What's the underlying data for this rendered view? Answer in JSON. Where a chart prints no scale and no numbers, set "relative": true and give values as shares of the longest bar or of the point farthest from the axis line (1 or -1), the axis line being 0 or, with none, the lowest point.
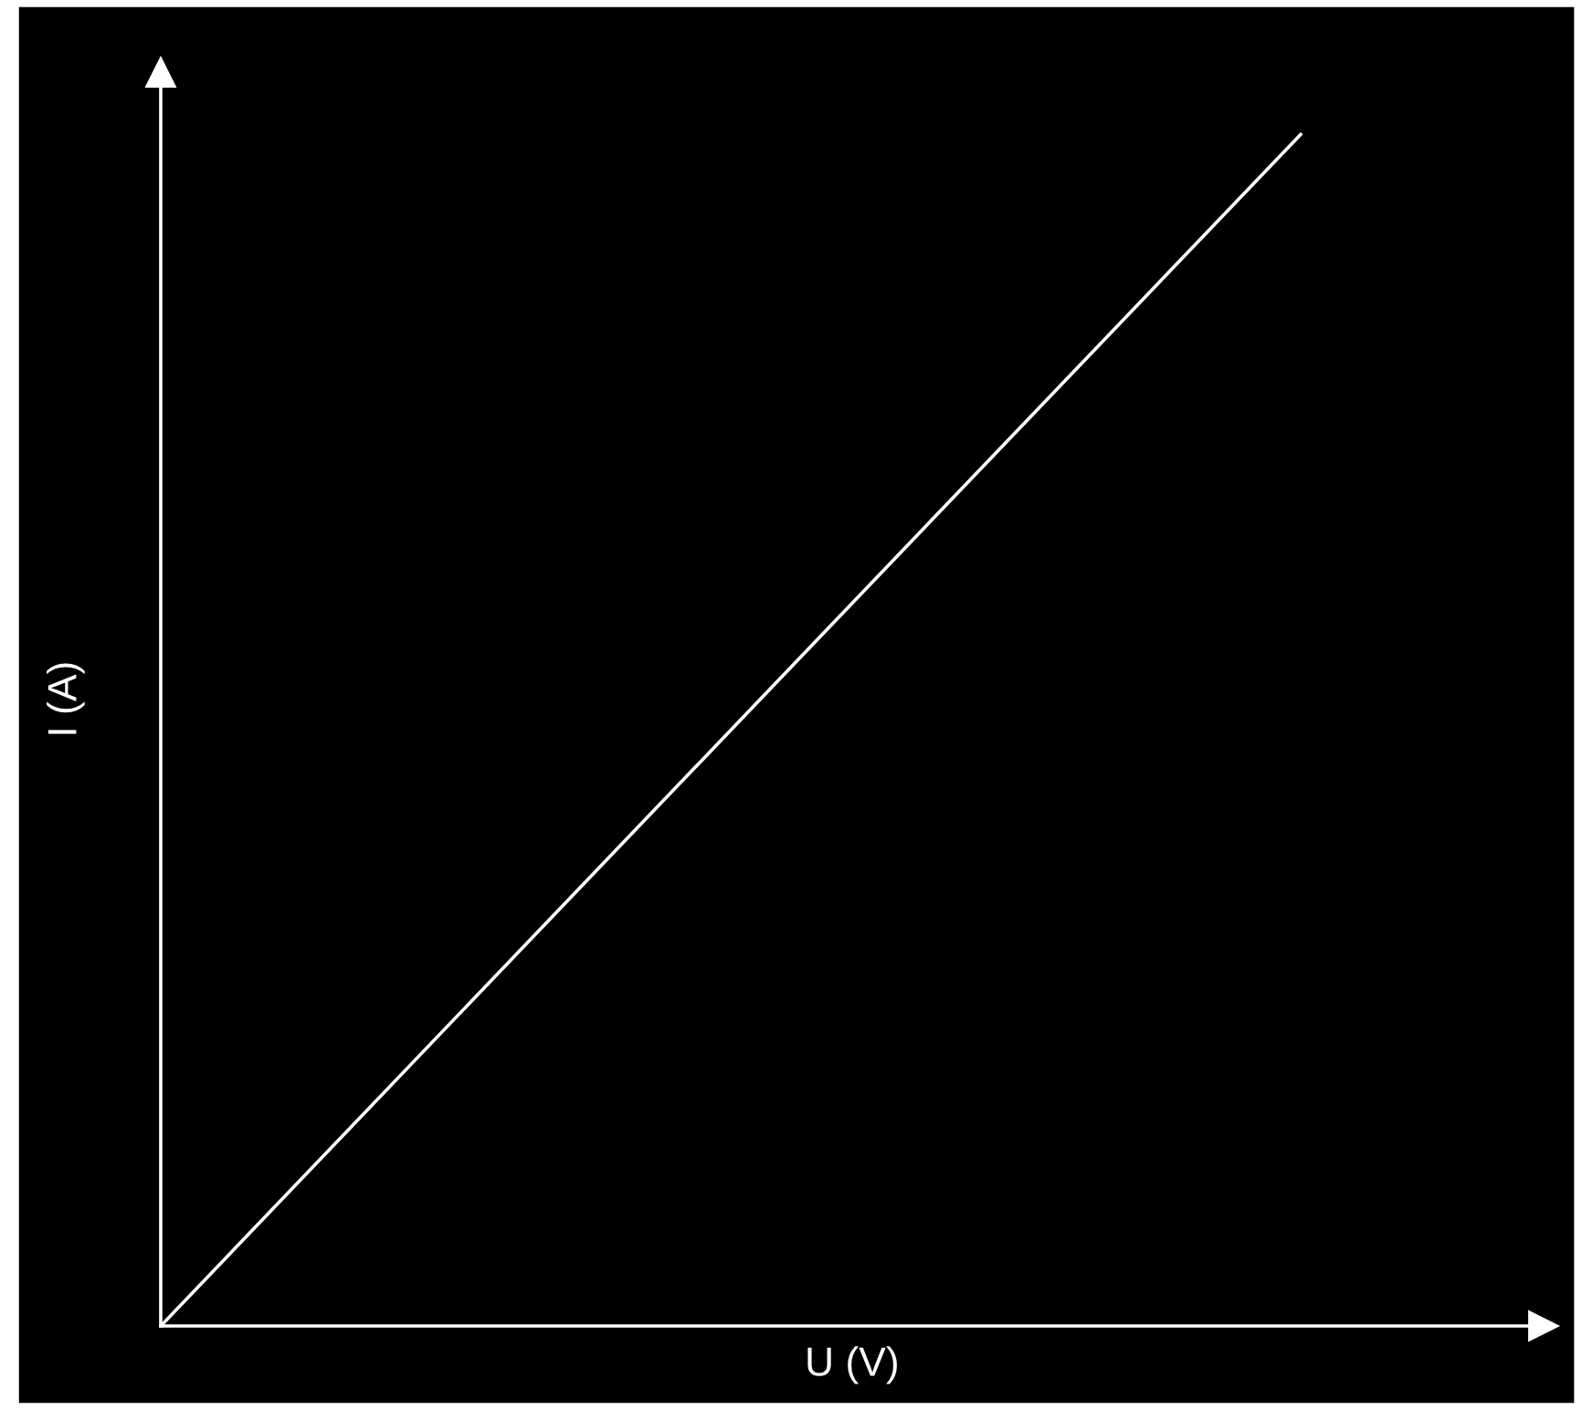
{
  "chart_data": {
    "type": "line",
    "xlabel": "U (V)",
    "ylabel": "I (A)",
    "relative": true,
    "categories": [
      null,
      null
    ],
    "series": [
      {
        "color": "#ffffff",
        "values": [
          0,
          1
        ]
      }
    ],
    "marker": "none",
    "line_style": "solid"
  }
}
